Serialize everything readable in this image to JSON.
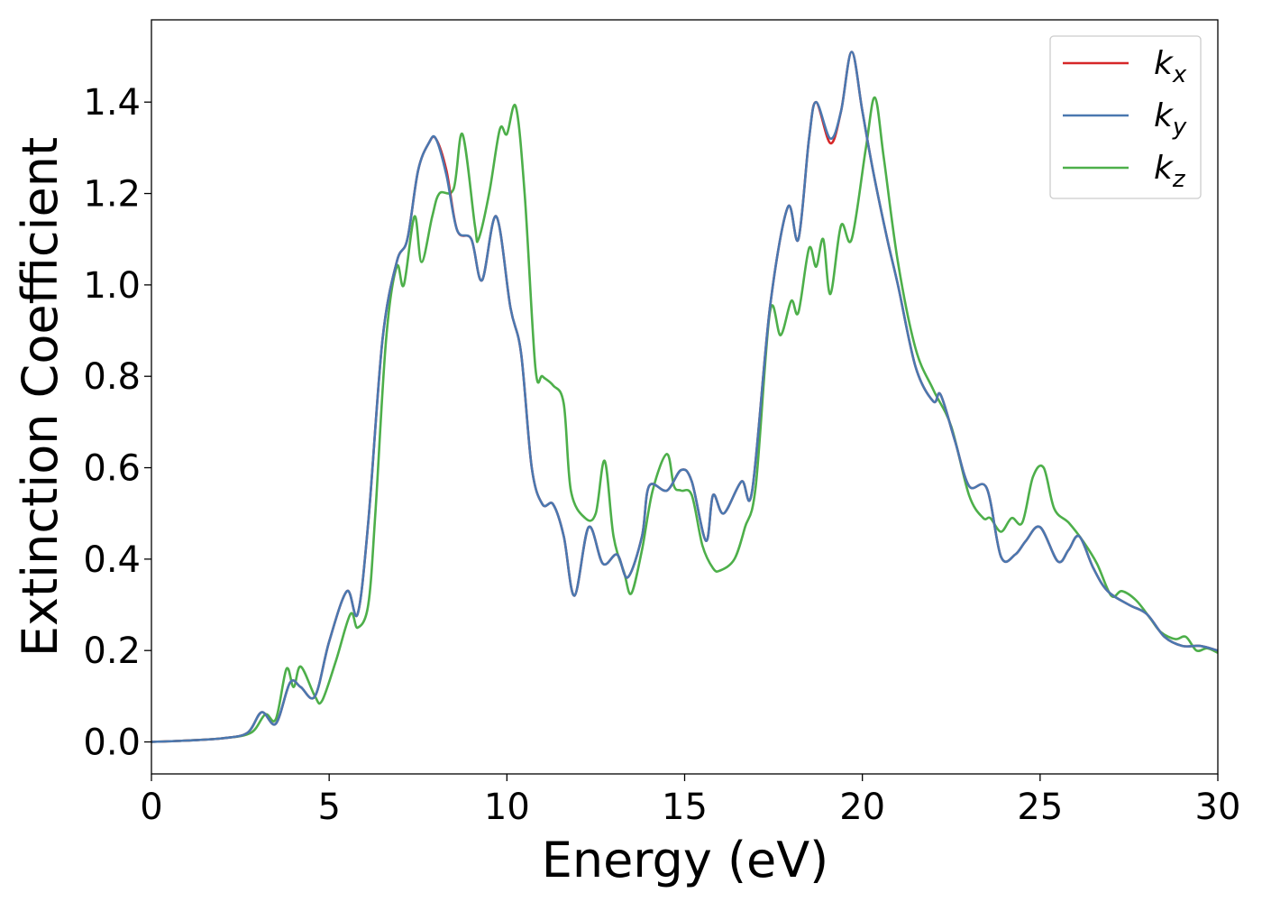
{
  "chart_data": {
    "type": "line",
    "xlabel": "Energy (eV)",
    "ylabel": "Extinction Coefficient",
    "xlim": [
      0,
      30
    ],
    "ylim": [
      -0.07,
      1.58
    ],
    "xticks": [
      "0",
      "5",
      "10",
      "15",
      "20",
      "25",
      "30"
    ],
    "yticks": [
      "0.0",
      "0.2",
      "0.4",
      "0.6",
      "0.8",
      "1.0",
      "1.2",
      "1.4"
    ],
    "grid": false,
    "legend_position": "top-right",
    "series": [
      {
        "name": "k",
        "subscript": "x",
        "color": "#d62728",
        "points": [
          [
            0,
            0
          ],
          [
            1,
            0.003
          ],
          [
            2,
            0.008
          ],
          [
            2.7,
            0.02
          ],
          [
            3.1,
            0.065
          ],
          [
            3.5,
            0.04
          ],
          [
            3.9,
            0.13
          ],
          [
            4.2,
            0.12
          ],
          [
            4.6,
            0.1
          ],
          [
            5.0,
            0.22
          ],
          [
            5.5,
            0.33
          ],
          [
            5.8,
            0.28
          ],
          [
            6.1,
            0.48
          ],
          [
            6.5,
            0.88
          ],
          [
            6.9,
            1.05
          ],
          [
            7.2,
            1.1
          ],
          [
            7.5,
            1.25
          ],
          [
            7.8,
            1.31
          ],
          [
            8.0,
            1.32
          ],
          [
            8.3,
            1.25
          ],
          [
            8.6,
            1.12
          ],
          [
            9.0,
            1.1
          ],
          [
            9.3,
            1.01
          ],
          [
            9.7,
            1.15
          ],
          [
            10.1,
            0.95
          ],
          [
            10.4,
            0.85
          ],
          [
            10.7,
            0.6
          ],
          [
            11.0,
            0.52
          ],
          [
            11.3,
            0.52
          ],
          [
            11.6,
            0.45
          ],
          [
            11.9,
            0.32
          ],
          [
            12.3,
            0.47
          ],
          [
            12.7,
            0.39
          ],
          [
            13.1,
            0.41
          ],
          [
            13.4,
            0.36
          ],
          [
            13.8,
            0.45
          ],
          [
            14.0,
            0.56
          ],
          [
            14.5,
            0.55
          ],
          [
            14.9,
            0.595
          ],
          [
            15.2,
            0.57
          ],
          [
            15.6,
            0.44
          ],
          [
            15.8,
            0.54
          ],
          [
            16.1,
            0.5
          ],
          [
            16.6,
            0.57
          ],
          [
            16.9,
            0.55
          ],
          [
            17.4,
            0.95
          ],
          [
            17.9,
            1.17
          ],
          [
            18.2,
            1.1
          ],
          [
            18.5,
            1.32
          ],
          [
            18.7,
            1.4
          ],
          [
            19.1,
            1.31
          ],
          [
            19.4,
            1.38
          ],
          [
            19.7,
            1.51
          ],
          [
            20.0,
            1.38
          ],
          [
            20.3,
            1.25
          ],
          [
            20.7,
            1.1
          ],
          [
            21.0,
            1.0
          ],
          [
            21.5,
            0.82
          ],
          [
            22.0,
            0.745
          ],
          [
            22.2,
            0.76
          ],
          [
            22.6,
            0.66
          ],
          [
            23.0,
            0.56
          ],
          [
            23.5,
            0.555
          ],
          [
            23.9,
            0.405
          ],
          [
            24.3,
            0.41
          ],
          [
            24.6,
            0.44
          ],
          [
            25.0,
            0.47
          ],
          [
            25.5,
            0.395
          ],
          [
            25.8,
            0.42
          ],
          [
            26.1,
            0.45
          ],
          [
            26.5,
            0.38
          ],
          [
            26.9,
            0.33
          ],
          [
            27.5,
            0.3
          ],
          [
            28.0,
            0.28
          ],
          [
            28.5,
            0.23
          ],
          [
            29.0,
            0.21
          ],
          [
            29.5,
            0.21
          ],
          [
            30,
            0.2
          ]
        ]
      },
      {
        "name": "k",
        "subscript": "y",
        "color": "#4a78b0",
        "points": [
          [
            0,
            0
          ],
          [
            1,
            0.003
          ],
          [
            2,
            0.008
          ],
          [
            2.7,
            0.02
          ],
          [
            3.1,
            0.065
          ],
          [
            3.5,
            0.04
          ],
          [
            3.9,
            0.13
          ],
          [
            4.2,
            0.12
          ],
          [
            4.6,
            0.1
          ],
          [
            5.0,
            0.22
          ],
          [
            5.5,
            0.33
          ],
          [
            5.8,
            0.28
          ],
          [
            6.1,
            0.48
          ],
          [
            6.5,
            0.88
          ],
          [
            6.9,
            1.05
          ],
          [
            7.2,
            1.1
          ],
          [
            7.5,
            1.25
          ],
          [
            7.8,
            1.31
          ],
          [
            8.0,
            1.32
          ],
          [
            8.3,
            1.24
          ],
          [
            8.6,
            1.12
          ],
          [
            9.0,
            1.1
          ],
          [
            9.3,
            1.01
          ],
          [
            9.7,
            1.15
          ],
          [
            10.1,
            0.95
          ],
          [
            10.4,
            0.85
          ],
          [
            10.7,
            0.6
          ],
          [
            11.0,
            0.52
          ],
          [
            11.3,
            0.52
          ],
          [
            11.6,
            0.45
          ],
          [
            11.9,
            0.32
          ],
          [
            12.3,
            0.47
          ],
          [
            12.7,
            0.39
          ],
          [
            13.1,
            0.41
          ],
          [
            13.4,
            0.36
          ],
          [
            13.8,
            0.45
          ],
          [
            14.0,
            0.56
          ],
          [
            14.5,
            0.55
          ],
          [
            14.9,
            0.595
          ],
          [
            15.2,
            0.57
          ],
          [
            15.6,
            0.44
          ],
          [
            15.8,
            0.54
          ],
          [
            16.1,
            0.5
          ],
          [
            16.6,
            0.57
          ],
          [
            16.9,
            0.55
          ],
          [
            17.4,
            0.95
          ],
          [
            17.9,
            1.17
          ],
          [
            18.2,
            1.1
          ],
          [
            18.5,
            1.32
          ],
          [
            18.7,
            1.4
          ],
          [
            19.1,
            1.32
          ],
          [
            19.4,
            1.38
          ],
          [
            19.7,
            1.51
          ],
          [
            20.0,
            1.38
          ],
          [
            20.3,
            1.25
          ],
          [
            20.7,
            1.1
          ],
          [
            21.0,
            1.0
          ],
          [
            21.5,
            0.82
          ],
          [
            22.0,
            0.745
          ],
          [
            22.2,
            0.76
          ],
          [
            22.6,
            0.66
          ],
          [
            23.0,
            0.56
          ],
          [
            23.5,
            0.555
          ],
          [
            23.9,
            0.405
          ],
          [
            24.3,
            0.41
          ],
          [
            24.6,
            0.44
          ],
          [
            25.0,
            0.47
          ],
          [
            25.5,
            0.395
          ],
          [
            25.8,
            0.42
          ],
          [
            26.1,
            0.45
          ],
          [
            26.5,
            0.38
          ],
          [
            26.9,
            0.33
          ],
          [
            27.5,
            0.3
          ],
          [
            28.0,
            0.28
          ],
          [
            28.5,
            0.23
          ],
          [
            29.0,
            0.21
          ],
          [
            29.5,
            0.21
          ],
          [
            30,
            0.2
          ]
        ]
      },
      {
        "name": "k",
        "subscript": "z",
        "color": "#4daf4a",
        "points": [
          [
            0,
            0
          ],
          [
            1,
            0.003
          ],
          [
            2,
            0.008
          ],
          [
            2.8,
            0.02
          ],
          [
            3.2,
            0.06
          ],
          [
            3.5,
            0.05
          ],
          [
            3.8,
            0.16
          ],
          [
            4.0,
            0.12
          ],
          [
            4.2,
            0.165
          ],
          [
            4.6,
            0.1
          ],
          [
            4.8,
            0.09
          ],
          [
            5.2,
            0.18
          ],
          [
            5.6,
            0.28
          ],
          [
            5.8,
            0.25
          ],
          [
            6.1,
            0.3
          ],
          [
            6.3,
            0.5
          ],
          [
            6.6,
            0.88
          ],
          [
            6.9,
            1.04
          ],
          [
            7.1,
            1.0
          ],
          [
            7.4,
            1.15
          ],
          [
            7.6,
            1.05
          ],
          [
            7.9,
            1.15
          ],
          [
            8.1,
            1.2
          ],
          [
            8.5,
            1.21
          ],
          [
            8.75,
            1.33
          ],
          [
            9.1,
            1.13
          ],
          [
            9.2,
            1.1
          ],
          [
            9.5,
            1.2
          ],
          [
            9.8,
            1.34
          ],
          [
            10.0,
            1.33
          ],
          [
            10.25,
            1.39
          ],
          [
            10.5,
            1.2
          ],
          [
            10.8,
            0.82
          ],
          [
            11.0,
            0.8
          ],
          [
            11.3,
            0.78
          ],
          [
            11.6,
            0.74
          ],
          [
            11.8,
            0.55
          ],
          [
            12.2,
            0.49
          ],
          [
            12.5,
            0.5
          ],
          [
            12.75,
            0.615
          ],
          [
            13.0,
            0.45
          ],
          [
            13.3,
            0.37
          ],
          [
            13.5,
            0.325
          ],
          [
            13.8,
            0.42
          ],
          [
            14.1,
            0.55
          ],
          [
            14.5,
            0.63
          ],
          [
            14.7,
            0.56
          ],
          [
            14.9,
            0.55
          ],
          [
            15.2,
            0.54
          ],
          [
            15.5,
            0.43
          ],
          [
            15.8,
            0.38
          ],
          [
            16.0,
            0.375
          ],
          [
            16.4,
            0.4
          ],
          [
            16.7,
            0.47
          ],
          [
            17.0,
            0.56
          ],
          [
            17.4,
            0.94
          ],
          [
            17.7,
            0.89
          ],
          [
            18.0,
            0.965
          ],
          [
            18.2,
            0.94
          ],
          [
            18.5,
            1.08
          ],
          [
            18.7,
            1.04
          ],
          [
            18.9,
            1.1
          ],
          [
            19.1,
            0.98
          ],
          [
            19.4,
            1.13
          ],
          [
            19.7,
            1.1
          ],
          [
            20.1,
            1.3
          ],
          [
            20.35,
            1.41
          ],
          [
            20.6,
            1.28
          ],
          [
            21.0,
            1.05
          ],
          [
            21.5,
            0.86
          ],
          [
            22.0,
            0.77
          ],
          [
            22.5,
            0.69
          ],
          [
            23.0,
            0.54
          ],
          [
            23.4,
            0.49
          ],
          [
            23.6,
            0.49
          ],
          [
            23.9,
            0.46
          ],
          [
            24.2,
            0.49
          ],
          [
            24.5,
            0.48
          ],
          [
            24.8,
            0.58
          ],
          [
            25.1,
            0.6
          ],
          [
            25.4,
            0.51
          ],
          [
            25.8,
            0.48
          ],
          [
            26.2,
            0.44
          ],
          [
            26.6,
            0.39
          ],
          [
            27.0,
            0.32
          ],
          [
            27.3,
            0.33
          ],
          [
            27.7,
            0.31
          ],
          [
            28.1,
            0.27
          ],
          [
            28.4,
            0.24
          ],
          [
            28.8,
            0.225
          ],
          [
            29.1,
            0.23
          ],
          [
            29.4,
            0.2
          ],
          [
            29.7,
            0.205
          ],
          [
            30,
            0.195
          ]
        ]
      }
    ]
  }
}
